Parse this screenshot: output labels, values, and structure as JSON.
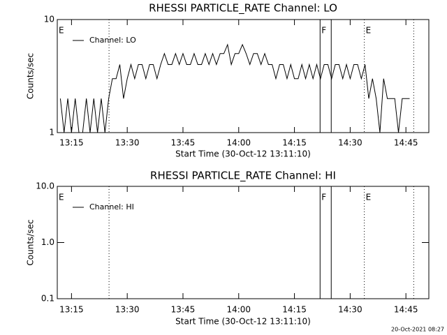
{
  "chart_data": [
    {
      "type": "line",
      "title": "RHESSI PARTICLE_RATE Channel: LO",
      "xlabel": "Start Time (30-Oct-12 13:11:10)",
      "ylabel": "Counts/sec",
      "x": [
        792,
        793,
        794,
        795,
        796,
        797,
        798,
        799,
        800,
        801,
        802,
        803,
        804,
        805,
        806,
        807,
        808,
        809,
        810,
        811,
        812,
        813,
        814,
        815,
        816,
        817,
        818,
        819,
        820,
        821,
        822,
        823,
        824,
        825,
        826,
        827,
        828,
        829,
        830,
        831,
        832,
        833,
        834,
        835,
        836,
        837,
        838,
        839,
        840,
        841,
        842,
        843,
        844,
        845,
        846,
        847,
        848,
        849,
        850,
        851,
        852,
        853,
        854,
        855,
        856,
        857,
        858,
        859,
        860,
        861,
        862,
        863,
        864,
        865,
        866,
        867,
        868,
        869,
        870,
        871,
        872,
        873,
        874,
        875,
        876,
        877,
        878,
        879,
        880,
        881,
        882,
        883,
        884,
        885,
        886
      ],
      "series": [
        {
          "name": "Channel: LO",
          "color": "#000000",
          "values": [
            2,
            1,
            2,
            1,
            2,
            1,
            1,
            2,
            1,
            2,
            1,
            2,
            1,
            2,
            3,
            3,
            4,
            2,
            3,
            4,
            3,
            4,
            4,
            3,
            4,
            4,
            3,
            4,
            5,
            4,
            4,
            5,
            4,
            5,
            4,
            4,
            5,
            4,
            4,
            5,
            4,
            5,
            4,
            5,
            5,
            6,
            4,
            5,
            5,
            6,
            5,
            4,
            5,
            5,
            4,
            5,
            4,
            4,
            3,
            4,
            4,
            3,
            4,
            3,
            3,
            4,
            3,
            4,
            3,
            4,
            3,
            4,
            4,
            3,
            4,
            4,
            3,
            4,
            3,
            4,
            4,
            3,
            4,
            2,
            3,
            2,
            1,
            3,
            2,
            2,
            2,
            1,
            2,
            2,
            2
          ]
        }
      ],
      "xlim": [
        791.17,
        891.17
      ],
      "xticks": [
        {
          "value": 795,
          "label": "13:15"
        },
        {
          "value": 810,
          "label": "13:30"
        },
        {
          "value": 825,
          "label": "13:45"
        },
        {
          "value": 840,
          "label": "14:00"
        },
        {
          "value": 855,
          "label": "14:15"
        },
        {
          "value": 870,
          "label": "14:30"
        },
        {
          "value": 885,
          "label": "14:45"
        }
      ],
      "ylim": [
        1,
        10
      ],
      "yticks": [
        1,
        10
      ],
      "log_y": true,
      "legend": "upper left",
      "markers": [
        {
          "x": 791.17,
          "style": "dotted",
          "label": "E"
        },
        {
          "x": 805.1,
          "style": "dotted"
        },
        {
          "x": 861.9,
          "style": "solid",
          "label": "F"
        },
        {
          "x": 864.9,
          "style": "solid"
        },
        {
          "x": 873.8,
          "style": "dotted",
          "label": "E"
        },
        {
          "x": 887.1,
          "style": "dotted"
        }
      ]
    },
    {
      "type": "line",
      "title": "RHESSI PARTICLE_RATE Channel: HI",
      "xlabel": "Start Time (30-Oct-12 13:11:10)",
      "ylabel": "Counts/sec",
      "x": [],
      "series": [
        {
          "name": "Channel: HI",
          "color": "#000000",
          "values": []
        }
      ],
      "xlim": [
        791.17,
        891.17
      ],
      "xticks": [
        {
          "value": 795,
          "label": "13:15"
        },
        {
          "value": 810,
          "label": "13:30"
        },
        {
          "value": 825,
          "label": "13:45"
        },
        {
          "value": 840,
          "label": "14:00"
        },
        {
          "value": 855,
          "label": "14:15"
        },
        {
          "value": 870,
          "label": "14:30"
        },
        {
          "value": 885,
          "label": "14:45"
        }
      ],
      "ylim": [
        0.1,
        10
      ],
      "yticks": [
        0.1,
        {
          "value": 1,
          "label": "1.0"
        },
        {
          "value": 10,
          "label": "10.0"
        }
      ],
      "log_y": true,
      "legend": "upper left",
      "markers": [
        {
          "x": 791.17,
          "style": "dotted",
          "label": "E"
        },
        {
          "x": 805.1,
          "style": "dotted"
        },
        {
          "x": 861.9,
          "style": "solid",
          "label": "F"
        },
        {
          "x": 864.9,
          "style": "solid"
        },
        {
          "x": 873.8,
          "style": "dotted",
          "label": "E"
        },
        {
          "x": 887.1,
          "style": "dotted"
        }
      ]
    }
  ],
  "footer": "20-Oct-2021 08:27"
}
